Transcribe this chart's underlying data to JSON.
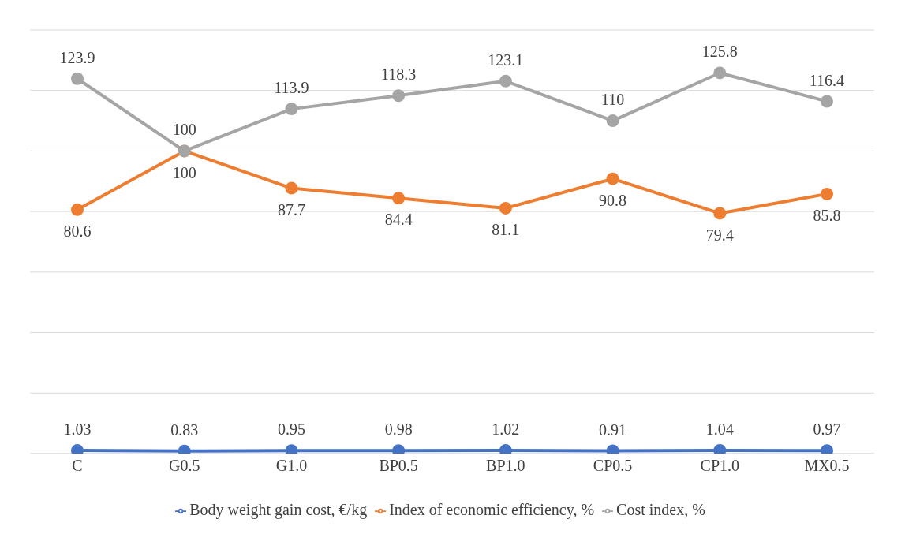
{
  "chart_data": {
    "type": "line",
    "categories": [
      "C",
      "G0.5",
      "G1.0",
      "BP0.5",
      "BP1.0",
      "CP0.5",
      "CP1.0",
      "MX0.5"
    ],
    "series": [
      {
        "name": "Body weight gain cost, €/kg",
        "color": "#4472c4",
        "values": [
          1.03,
          0.83,
          0.95,
          0.98,
          1.02,
          0.91,
          1.04,
          0.97
        ]
      },
      {
        "name": "Index of economic efficiency, %",
        "color": "#ed7d31",
        "values": [
          80.6,
          100,
          87.7,
          84.4,
          81.1,
          90.8,
          79.4,
          85.8
        ]
      },
      {
        "name": "Cost index, %",
        "color": "#a5a5a5",
        "values": [
          123.9,
          100,
          113.9,
          118.3,
          123.1,
          110,
          125.8,
          116.4
        ]
      }
    ],
    "ylim": [
      0,
      140
    ],
    "tick_labels": "x",
    "grid": "y",
    "legend": "bottom",
    "marker": "circle",
    "line_style": "solid",
    "data_labels": true
  }
}
